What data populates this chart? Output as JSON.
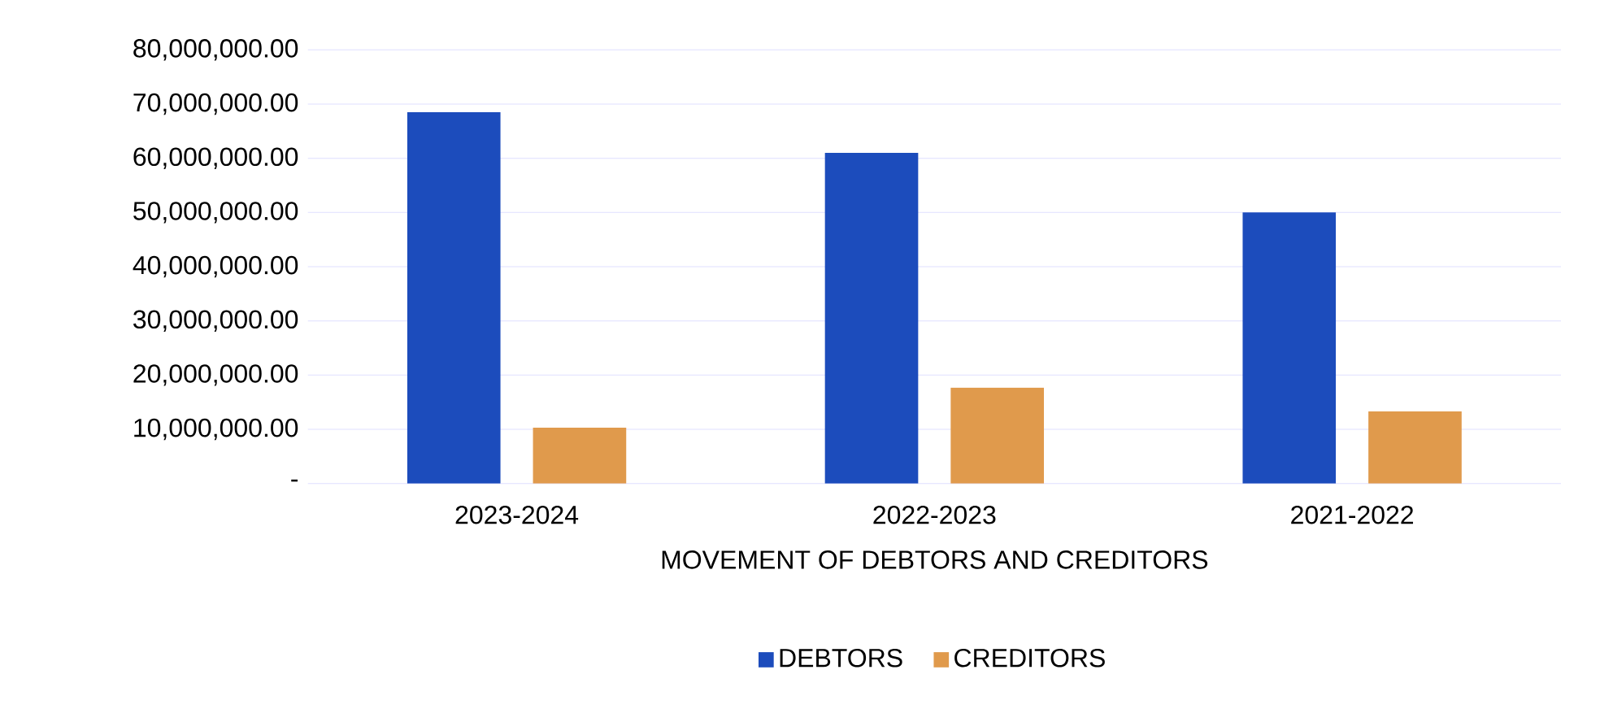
{
  "chart_data": {
    "type": "bar",
    "xlabel": "MOVEMENT OF DEBTORS AND CREDITORS",
    "categories": [
      "2023-2024",
      "2022-2023",
      "2021-2022"
    ],
    "series": [
      {
        "name": "DEBTORS",
        "color": "#1c4cbc",
        "values": [
          68500000,
          61000000,
          50000000
        ]
      },
      {
        "name": "CREDITORS",
        "color": "#e09a4c",
        "values": [
          10300000,
          17700000,
          13300000
        ]
      }
    ],
    "ylim": [
      0,
      80000000
    ],
    "yticks": [
      {
        "value": 0,
        "label": "-"
      },
      {
        "value": 10000000,
        "label": "10,000,000.00"
      },
      {
        "value": 20000000,
        "label": "20,000,000.00"
      },
      {
        "value": 30000000,
        "label": "30,000,000.00"
      },
      {
        "value": 40000000,
        "label": "40,000,000.00"
      },
      {
        "value": 50000000,
        "label": "50,000,000.00"
      },
      {
        "value": 60000000,
        "label": "60,000,000.00"
      },
      {
        "value": 70000000,
        "label": "70,000,000.00"
      },
      {
        "value": 80000000,
        "label": "80,000,000.00"
      }
    ],
    "grid": "y",
    "legend": "bottom"
  }
}
